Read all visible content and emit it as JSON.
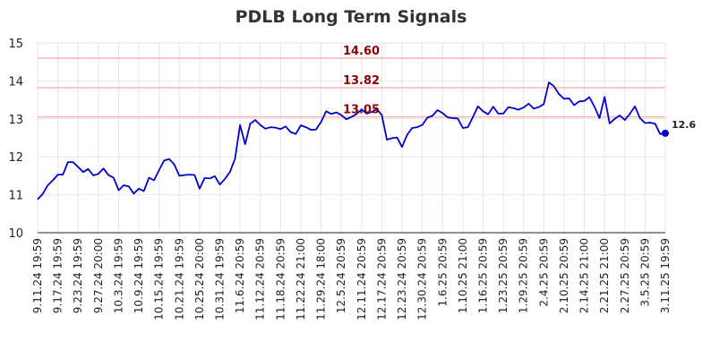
{
  "chart_data": {
    "type": "line",
    "title": "PDLB Long Term Signals",
    "xlabel": "",
    "ylabel": "",
    "ylim": [
      10,
      15
    ],
    "yticks": [
      10,
      11,
      12,
      13,
      14,
      15
    ],
    "grid": true,
    "line_color": "#0000cc",
    "ref_color": "#ffb3b3",
    "ref_label_color": "#8b0000",
    "reference_lines": [
      {
        "value": 14.6,
        "label": "14.60"
      },
      {
        "value": 13.82,
        "label": "13.82"
      },
      {
        "value": 13.05,
        "label": "13.05"
      }
    ],
    "last_value_label": "12.6",
    "xtick_labels": [
      "9.11.24 19:59",
      "9.17.24 19:59",
      "9.23.24 19:59",
      "9.27.24 20:00",
      "10.3.24 19:59",
      "10.9.24 19:59",
      "10.15.24 19:59",
      "10.21.24 19:59",
      "10.25.24 20:00",
      "10.31.24 19:59",
      "11.6.24 20:59",
      "11.12.24 20:59",
      "11.18.24 20:59",
      "11.22.24 21:00",
      "11.29.24 18:00",
      "12.5.24 20:59",
      "12.11.24 20:59",
      "12.17.24 20:59",
      "12.23.24 20:59",
      "12.30.24 20:59",
      "1.6.25 20:59",
      "1.10.25 21:00",
      "1.16.25 20:59",
      "1.23.25 20:59",
      "1.29.25 20:59",
      "2.4.25 20:59",
      "2.10.25 20:59",
      "2.14.25 21:00",
      "2.21.25 21:00",
      "2.27.25 20:59",
      "3.5.25 20:59",
      "3.11.25 19:59"
    ],
    "values": [
      10.88,
      11.02,
      11.25,
      11.38,
      11.53,
      11.53,
      11.86,
      11.86,
      11.73,
      11.6,
      11.68,
      11.51,
      11.55,
      11.69,
      11.52,
      11.45,
      11.12,
      11.25,
      11.22,
      11.03,
      11.16,
      11.1,
      11.45,
      11.38,
      11.65,
      11.9,
      11.94,
      11.8,
      11.5,
      11.52,
      11.53,
      11.52,
      11.16,
      11.44,
      11.43,
      11.49,
      11.27,
      11.42,
      11.6,
      11.95,
      12.84,
      12.33,
      12.87,
      12.97,
      12.84,
      12.74,
      12.78,
      12.77,
      12.73,
      12.8,
      12.65,
      12.6,
      12.83,
      12.78,
      12.71,
      12.72,
      12.92,
      13.2,
      13.13,
      13.17,
      13.1,
      12.99,
      13.05,
      13.13,
      13.25,
      13.14,
      13.18,
      13.26,
      13.1,
      12.45,
      12.49,
      12.51,
      12.26,
      12.58,
      12.76,
      12.78,
      12.84,
      13.03,
      13.08,
      13.23,
      13.15,
      13.04,
      13.02,
      13.01,
      12.76,
      12.78,
      13.05,
      13.33,
      13.2,
      13.12,
      13.32,
      13.14,
      13.14,
      13.31,
      13.28,
      13.24,
      13.3,
      13.4,
      13.27,
      13.31,
      13.39,
      13.96,
      13.86,
      13.65,
      13.53,
      13.54,
      13.36,
      13.46,
      13.47,
      13.57,
      13.32,
      13.02,
      13.58,
      12.88,
      13.0,
      13.09,
      12.97,
      13.13,
      13.33,
      13.02,
      12.89,
      12.9,
      12.87,
      12.6,
      12.62
    ]
  }
}
